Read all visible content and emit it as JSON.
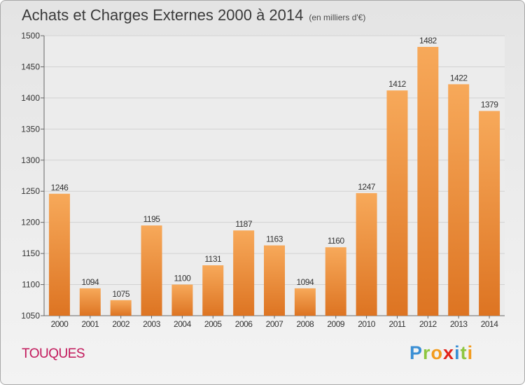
{
  "chart_data": {
    "type": "bar",
    "title": "Achats et Charges Externes 2000 à 2014",
    "subtitle": "(en milliers d'€)",
    "categories": [
      "2000",
      "2001",
      "2002",
      "2003",
      "2004",
      "2005",
      "2006",
      "2007",
      "2008",
      "2009",
      "2010",
      "2011",
      "2012",
      "2013",
      "2014"
    ],
    "values": [
      1246,
      1094,
      1075,
      1195,
      1100,
      1131,
      1187,
      1163,
      1094,
      1160,
      1247,
      1412,
      1482,
      1422,
      1379
    ],
    "ylim": [
      1050,
      1500
    ],
    "yticks": [
      1050,
      1100,
      1150,
      1200,
      1250,
      1300,
      1350,
      1400,
      1450,
      1500
    ],
    "grid": true,
    "bar_color_top": "#f7a95a",
    "bar_color_bottom": "#dd7422"
  },
  "location": "TOUQUES",
  "brand": {
    "letters": [
      "P",
      "r",
      "o",
      "x",
      "i",
      "t",
      "i"
    ],
    "colors": [
      "#3b8fd4",
      "#8dc63f",
      "#f29b1d",
      "#e2231a",
      "#3b8fd4",
      "#8dc63f",
      "#f29b1d"
    ]
  }
}
